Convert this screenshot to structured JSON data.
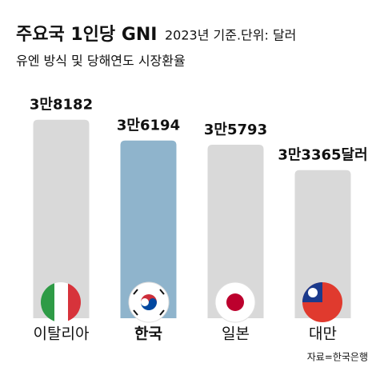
{
  "chart_data": {
    "type": "bar",
    "title": "주요국 1인당 GNI",
    "subtitle": "2023년 기준.단위: 달러",
    "note": "유엔 방식 및 당해연도 시장환율",
    "source": "자료=한국은행",
    "categories": [
      "이탈리아",
      "한국",
      "일본",
      "대만"
    ],
    "values": [
      38182,
      36194,
      35793,
      33365
    ],
    "value_labels": [
      "3만8182",
      "3만6194",
      "3만5793",
      "3만3365달러"
    ],
    "colors": [
      "#d9d9d9",
      "#8fb4cc",
      "#d9d9d9",
      "#d9d9d9"
    ],
    "highlight_index": 1,
    "ylim": [
      19200,
      39000
    ]
  }
}
